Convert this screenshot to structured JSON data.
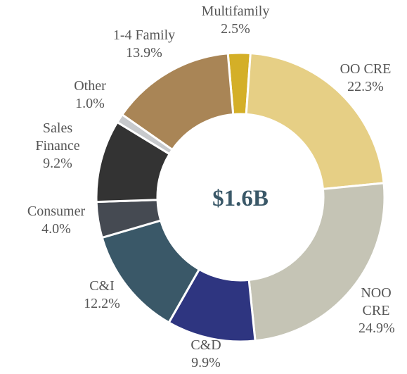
{
  "chart_data": {
    "type": "donut",
    "center_label": "$1.6B",
    "categories": [
      "Multifamily",
      "OO CRE",
      "NOO CRE",
      "C&D",
      "C&I",
      "Consumer",
      "Sales Finance",
      "Other",
      "1-4 Family"
    ],
    "values": [
      2.5,
      22.3,
      24.9,
      9.9,
      12.2,
      4.0,
      9.2,
      1.0,
      13.9
    ],
    "value_labels": [
      "2.5%",
      "22.3%",
      "24.9%",
      "9.9%",
      "12.2%",
      "4.0%",
      "9.2%",
      "1.0%",
      "13.9%"
    ],
    "colors": [
      "#d4af27",
      "#e6cf85",
      "#c5c4b5",
      "#2e3580",
      "#3a5868",
      "#454a52",
      "#333333",
      "#c7c9cc",
      "#a98556"
    ]
  }
}
